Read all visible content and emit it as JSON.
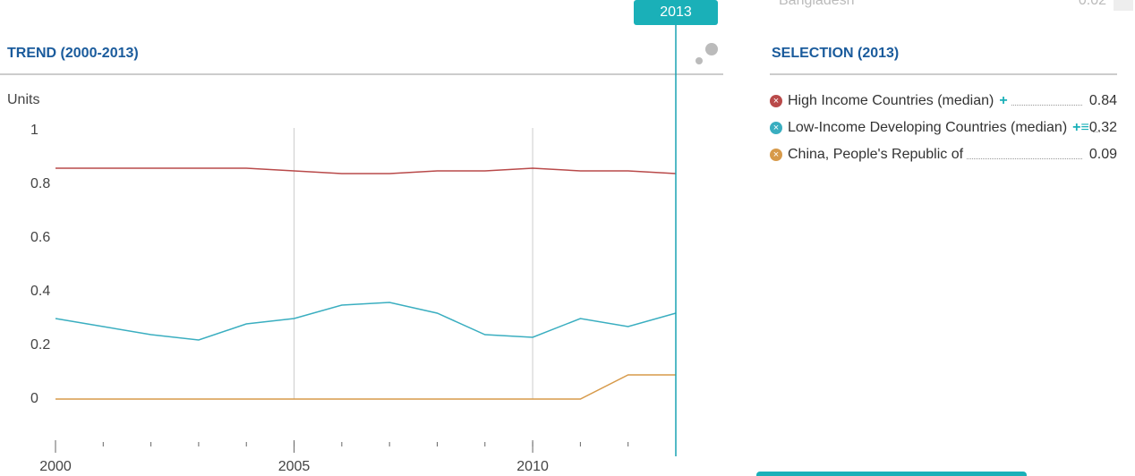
{
  "top_row": {
    "name": "Bangladesh",
    "value": 0.02
  },
  "chart_data": {
    "type": "line",
    "title": "TREND (2000-2013)",
    "y_label": "Units",
    "x": [
      2000,
      2001,
      2002,
      2003,
      2004,
      2005,
      2006,
      2007,
      2008,
      2009,
      2010,
      2011,
      2012,
      2013
    ],
    "series": [
      {
        "name": "High Income Countries (median)",
        "color": "#b94a4a",
        "values": [
          0.86,
          0.86,
          0.86,
          0.86,
          0.86,
          0.85,
          0.84,
          0.84,
          0.85,
          0.85,
          0.86,
          0.85,
          0.85,
          0.84
        ]
      },
      {
        "name": "Low-Income Developing Countries (median)",
        "color": "#3aaec0",
        "values": [
          0.3,
          0.27,
          0.24,
          0.22,
          0.28,
          0.3,
          0.35,
          0.36,
          0.32,
          0.24,
          0.23,
          0.3,
          0.27,
          0.32
        ]
      },
      {
        "name": "China, People's Republic of",
        "color": "#d79a4a",
        "values": [
          0,
          0,
          0,
          0,
          0,
          0,
          0,
          0,
          0,
          0,
          0,
          0,
          0.09,
          0.09
        ]
      }
    ],
    "xlim": [
      2000,
      2013
    ],
    "ylim": [
      -0.16,
      1
    ],
    "xticks": [
      2000,
      2005,
      2010
    ],
    "yticks": [
      0,
      0.2,
      0.4,
      0.6,
      0.8,
      1
    ],
    "grid_x": true,
    "legend_title": "SELECTION (2013)"
  }
}
